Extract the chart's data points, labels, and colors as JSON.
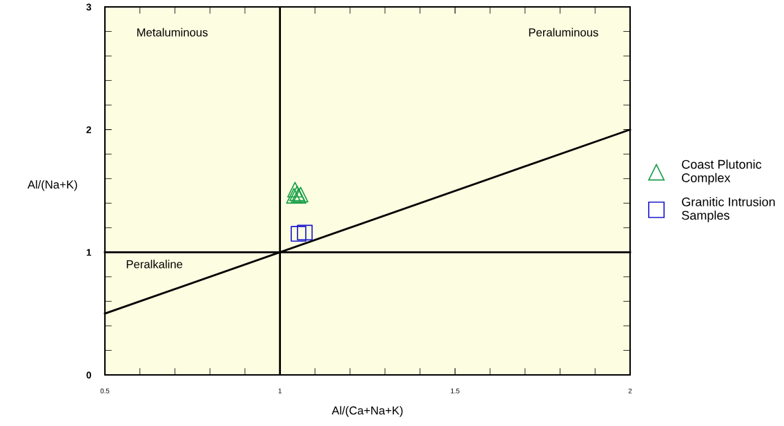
{
  "chart_data": {
    "type": "scatter",
    "xlabel": "Al/(Ca+Na+K)",
    "ylabel": "Al/(Na+K)",
    "xlim": [
      0.5,
      2
    ],
    "xticks": [
      0.5,
      1,
      1.5,
      2
    ],
    "ylim": [
      0,
      3
    ],
    "yticks": [
      0,
      1,
      2,
      3
    ],
    "series": [
      {
        "name": "Coast Plutonic Complex",
        "color": "#1aa04a",
        "marker": "triangle",
        "x": [
          1.043,
          1.049,
          1.059,
          1.053,
          1.04
        ],
        "values": [
          1.51,
          1.48,
          1.47,
          1.46,
          1.46
        ]
      },
      {
        "name": "Granitic Intrusion Samples",
        "color": "#1a1ad0",
        "marker": "square",
        "x": [
          1.053,
          1.071
        ],
        "values": [
          1.15,
          1.16
        ]
      },
      {
        "type": "line",
        "color": "#000000",
        "marker": "none",
        "x": [
          0.5,
          2
        ],
        "values": [
          0.5,
          2
        ]
      },
      {
        "type": "line",
        "color": "#000000",
        "marker": "none",
        "x": [
          0.5,
          2
        ],
        "values": [
          1,
          1
        ]
      }
    ],
    "ref_lines": [
      {
        "axis": "x",
        "value": 1,
        "color": "#000000"
      }
    ],
    "annotations": [
      "Metaluminous",
      "Peraluminous",
      "Peralkaline"
    ],
    "legend": "right",
    "grid": false
  }
}
